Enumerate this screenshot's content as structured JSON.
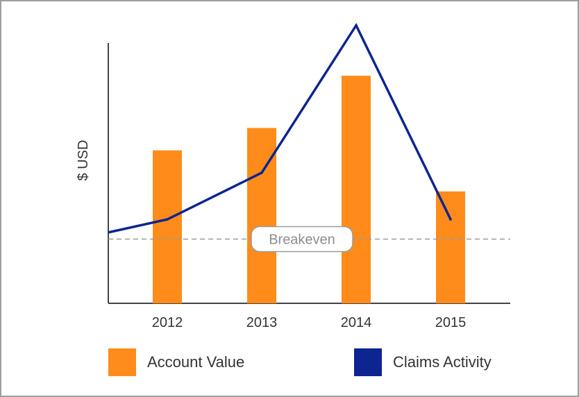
{
  "chart_data": {
    "type": "bar",
    "title": "",
    "xlabel": "",
    "ylabel": "$ USD",
    "categories": [
      "2012",
      "2013",
      "2014",
      "2015"
    ],
    "series": [
      {
        "name": "Account Value",
        "type": "bar",
        "color": "#ff8c1a",
        "values": [
          410,
          470,
          610,
          300
        ]
      },
      {
        "name": "Claims Activity",
        "type": "line",
        "color": "#0d2591",
        "values": [
          225,
          350,
          745,
          225
        ]
      }
    ],
    "line_start": 190,
    "breakeven": {
      "label": "Breakeven",
      "value": 172
    },
    "ylim": [
      0,
      720
    ],
    "grid": false,
    "legend": "bottom",
    "yticks_shown": false
  }
}
